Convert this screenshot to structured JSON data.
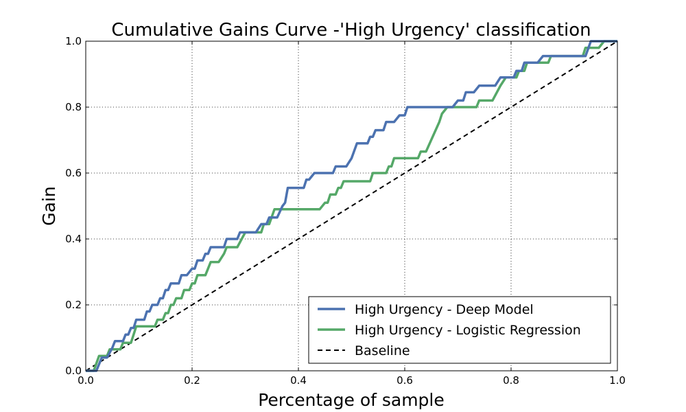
{
  "chart_data": {
    "type": "line",
    "title": "Cumulative Gains Curve -'High Urgency' classification",
    "xlabel": "Percentage of sample",
    "ylabel": "Gain",
    "xlim": [
      0.0,
      1.0
    ],
    "ylim": [
      0.0,
      1.0
    ],
    "x_ticks": [
      "0.0",
      "0.2",
      "0.4",
      "0.6",
      "0.8",
      "1.0"
    ],
    "y_ticks": [
      "0.0",
      "0.2",
      "0.4",
      "0.6",
      "0.8",
      "1.0"
    ],
    "grid": true,
    "legend_position": "lower-right",
    "series": [
      {
        "name": "High Urgency - Deep Model",
        "color": "#4c72b0",
        "style": "solid",
        "points": [
          [
            0.0,
            0.0
          ],
          [
            0.02,
            0.0
          ],
          [
            0.03,
            0.04
          ],
          [
            0.04,
            0.04
          ],
          [
            0.05,
            0.07
          ],
          [
            0.055,
            0.09
          ],
          [
            0.07,
            0.09
          ],
          [
            0.075,
            0.11
          ],
          [
            0.08,
            0.11
          ],
          [
            0.085,
            0.13
          ],
          [
            0.09,
            0.13
          ],
          [
            0.095,
            0.155
          ],
          [
            0.11,
            0.155
          ],
          [
            0.115,
            0.18
          ],
          [
            0.12,
            0.18
          ],
          [
            0.125,
            0.2
          ],
          [
            0.135,
            0.2
          ],
          [
            0.14,
            0.22
          ],
          [
            0.145,
            0.22
          ],
          [
            0.15,
            0.245
          ],
          [
            0.155,
            0.245
          ],
          [
            0.16,
            0.265
          ],
          [
            0.175,
            0.265
          ],
          [
            0.18,
            0.29
          ],
          [
            0.19,
            0.29
          ],
          [
            0.2,
            0.31
          ],
          [
            0.205,
            0.31
          ],
          [
            0.21,
            0.335
          ],
          [
            0.22,
            0.335
          ],
          [
            0.225,
            0.355
          ],
          [
            0.23,
            0.355
          ],
          [
            0.235,
            0.375
          ],
          [
            0.26,
            0.375
          ],
          [
            0.265,
            0.4
          ],
          [
            0.285,
            0.4
          ],
          [
            0.29,
            0.42
          ],
          [
            0.32,
            0.42
          ],
          [
            0.33,
            0.445
          ],
          [
            0.34,
            0.445
          ],
          [
            0.345,
            0.465
          ],
          [
            0.36,
            0.465
          ],
          [
            0.37,
            0.5
          ],
          [
            0.375,
            0.51
          ],
          [
            0.38,
            0.555
          ],
          [
            0.41,
            0.555
          ],
          [
            0.415,
            0.58
          ],
          [
            0.42,
            0.58
          ],
          [
            0.43,
            0.6
          ],
          [
            0.465,
            0.6
          ],
          [
            0.47,
            0.62
          ],
          [
            0.49,
            0.62
          ],
          [
            0.5,
            0.645
          ],
          [
            0.51,
            0.69
          ],
          [
            0.53,
            0.69
          ],
          [
            0.535,
            0.71
          ],
          [
            0.54,
            0.71
          ],
          [
            0.545,
            0.73
          ],
          [
            0.56,
            0.73
          ],
          [
            0.565,
            0.755
          ],
          [
            0.58,
            0.755
          ],
          [
            0.59,
            0.775
          ],
          [
            0.6,
            0.775
          ],
          [
            0.605,
            0.8
          ],
          [
            0.69,
            0.8
          ],
          [
            0.7,
            0.82
          ],
          [
            0.71,
            0.82
          ],
          [
            0.715,
            0.845
          ],
          [
            0.73,
            0.845
          ],
          [
            0.74,
            0.865
          ],
          [
            0.77,
            0.865
          ],
          [
            0.78,
            0.89
          ],
          [
            0.805,
            0.89
          ],
          [
            0.81,
            0.91
          ],
          [
            0.82,
            0.91
          ],
          [
            0.825,
            0.935
          ],
          [
            0.85,
            0.935
          ],
          [
            0.86,
            0.955
          ],
          [
            0.94,
            0.955
          ],
          [
            0.95,
            1.0
          ],
          [
            1.0,
            1.0
          ]
        ]
      },
      {
        "name": "High Urgency - Logistic Regression",
        "color": "#55a868",
        "style": "solid",
        "points": [
          [
            0.0,
            0.0
          ],
          [
            0.015,
            0.0
          ],
          [
            0.025,
            0.045
          ],
          [
            0.04,
            0.045
          ],
          [
            0.045,
            0.065
          ],
          [
            0.065,
            0.065
          ],
          [
            0.07,
            0.085
          ],
          [
            0.085,
            0.085
          ],
          [
            0.09,
            0.11
          ],
          [
            0.095,
            0.135
          ],
          [
            0.13,
            0.135
          ],
          [
            0.135,
            0.155
          ],
          [
            0.145,
            0.155
          ],
          [
            0.15,
            0.175
          ],
          [
            0.155,
            0.175
          ],
          [
            0.16,
            0.2
          ],
          [
            0.165,
            0.2
          ],
          [
            0.17,
            0.22
          ],
          [
            0.18,
            0.22
          ],
          [
            0.185,
            0.245
          ],
          [
            0.195,
            0.245
          ],
          [
            0.2,
            0.265
          ],
          [
            0.205,
            0.265
          ],
          [
            0.21,
            0.29
          ],
          [
            0.225,
            0.29
          ],
          [
            0.23,
            0.31
          ],
          [
            0.235,
            0.33
          ],
          [
            0.25,
            0.33
          ],
          [
            0.26,
            0.355
          ],
          [
            0.265,
            0.375
          ],
          [
            0.285,
            0.375
          ],
          [
            0.3,
            0.42
          ],
          [
            0.33,
            0.42
          ],
          [
            0.335,
            0.445
          ],
          [
            0.345,
            0.445
          ],
          [
            0.355,
            0.49
          ],
          [
            0.44,
            0.49
          ],
          [
            0.45,
            0.51
          ],
          [
            0.455,
            0.51
          ],
          [
            0.46,
            0.535
          ],
          [
            0.47,
            0.535
          ],
          [
            0.475,
            0.555
          ],
          [
            0.48,
            0.555
          ],
          [
            0.485,
            0.575
          ],
          [
            0.535,
            0.575
          ],
          [
            0.54,
            0.6
          ],
          [
            0.565,
            0.6
          ],
          [
            0.57,
            0.62
          ],
          [
            0.575,
            0.62
          ],
          [
            0.58,
            0.645
          ],
          [
            0.625,
            0.645
          ],
          [
            0.63,
            0.665
          ],
          [
            0.64,
            0.665
          ],
          [
            0.665,
            0.755
          ],
          [
            0.67,
            0.78
          ],
          [
            0.68,
            0.8
          ],
          [
            0.735,
            0.8
          ],
          [
            0.74,
            0.82
          ],
          [
            0.765,
            0.82
          ],
          [
            0.78,
            0.865
          ],
          [
            0.79,
            0.89
          ],
          [
            0.81,
            0.89
          ],
          [
            0.815,
            0.91
          ],
          [
            0.825,
            0.91
          ],
          [
            0.83,
            0.935
          ],
          [
            0.87,
            0.935
          ],
          [
            0.875,
            0.955
          ],
          [
            0.935,
            0.955
          ],
          [
            0.94,
            0.98
          ],
          [
            0.965,
            0.98
          ],
          [
            0.975,
            1.0
          ],
          [
            1.0,
            1.0
          ]
        ]
      },
      {
        "name": "Baseline",
        "color": "#000000",
        "style": "dashed",
        "points": [
          [
            0.0,
            0.0
          ],
          [
            1.0,
            1.0
          ]
        ]
      }
    ]
  }
}
